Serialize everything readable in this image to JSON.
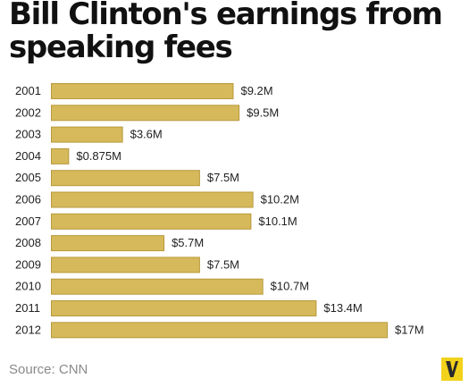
{
  "title": "Bill Clinton's earnings from speaking fees",
  "source": "Source: CNN",
  "colors": {
    "bar": "#d5b95a",
    "bar_stroke": "#b8993d",
    "logo_bg": "#f2d21b",
    "logo_fg": "#2a2a2a"
  },
  "logo_icon": "vox-v-logo",
  "chart_data": {
    "type": "bar",
    "orientation": "horizontal",
    "categories": [
      "2001",
      "2002",
      "2003",
      "2004",
      "2005",
      "2006",
      "2007",
      "2008",
      "2009",
      "2010",
      "2011",
      "2012"
    ],
    "values": [
      9.2,
      9.5,
      3.6,
      0.875,
      7.5,
      10.2,
      10.1,
      5.7,
      7.5,
      10.7,
      13.4,
      17
    ],
    "value_labels": [
      "$9.2M",
      "$9.5M",
      "$3.6M",
      "$0.875M",
      "$7.5M",
      "$10.2M",
      "$10.1M",
      "$5.7M",
      "$7.5M",
      "$10.7M",
      "$13.4M",
      "$17M"
    ],
    "unit": "$M",
    "xlim": [
      0,
      17
    ],
    "grid": false,
    "legend": "none"
  }
}
